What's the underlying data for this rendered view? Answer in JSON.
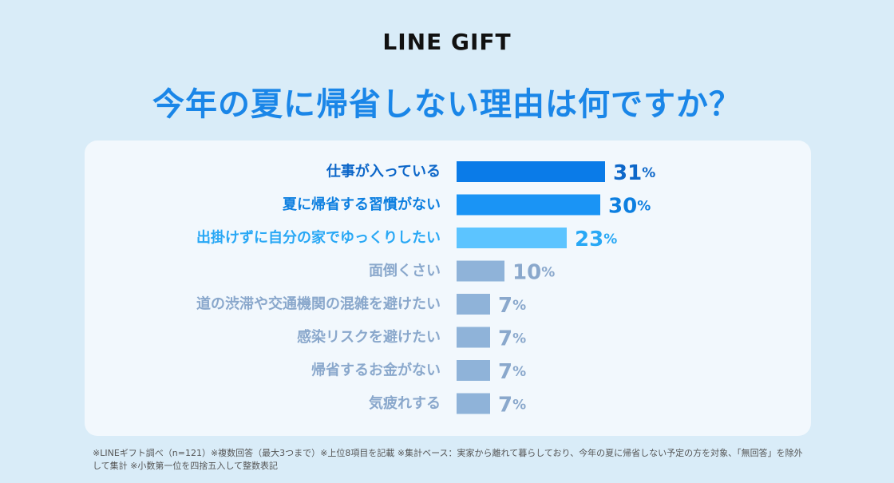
{
  "brand": "LINE GIFT",
  "chart_data": {
    "type": "bar",
    "orientation": "horizontal",
    "title": "今年の夏に帰省しない理由は何ですか？",
    "categories": [
      "仕事が入っている",
      "夏に帰省する習慣がない",
      "出掛けずに自分の家でゆっくりしたい",
      "面倒くさい",
      "道の渋滞や交通機関の混雑を避けたい",
      "感染リスクを避けたい",
      "帰省するお金がない",
      "気疲れする"
    ],
    "values": [
      31,
      30,
      23,
      10,
      7,
      7,
      7,
      7
    ],
    "unit": "%",
    "xlim": [
      0,
      31
    ],
    "bar_colors": [
      "#0a7be8",
      "#1a94f5",
      "#5cc4ff",
      "#8fb3d9",
      "#8fb3d9",
      "#8fb3d9",
      "#8fb3d9",
      "#8fb3d9"
    ],
    "label_colors": [
      "#0d67c9",
      "#0d7fe0",
      "#29a8f5",
      "#8aa8cc",
      "#8aa8cc",
      "#8aa8cc",
      "#8aa8cc",
      "#8aa8cc"
    ]
  },
  "footnote": "※LINEギフト調べ（n=121）※複数回答（最大3つまで）※上位8項目を記載 ※集計ベース：実家から離れて暮らしており、今年の夏に帰省しない予定の方を対象、「無回答」を除外して集計 ※小数第一位を四捨五入して整数表記"
}
